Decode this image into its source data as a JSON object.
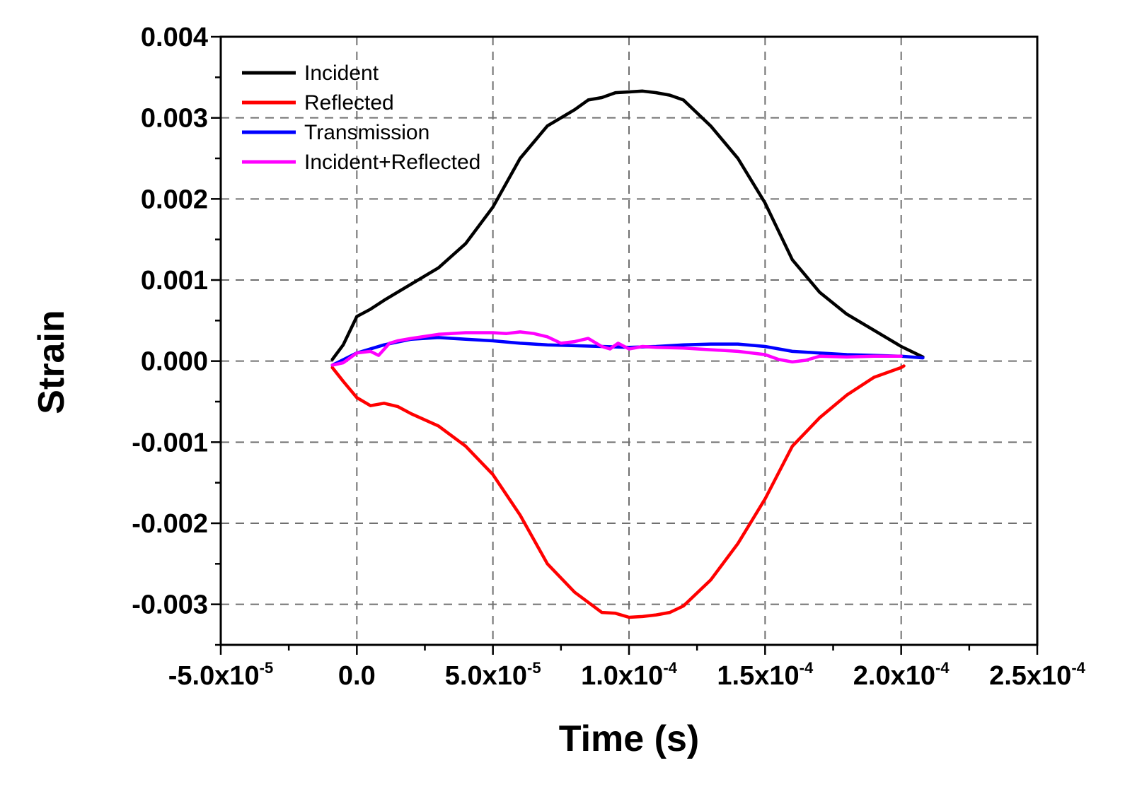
{
  "chart_data": {
    "type": "line",
    "title": "",
    "xlabel": "Time (s)",
    "ylabel": "Strain",
    "xlim": [
      -5e-05,
      0.00025
    ],
    "ylim": [
      -0.0035,
      0.004
    ],
    "grid": true,
    "legend_position": "top-left",
    "x_ticks": [
      {
        "value": -5e-05,
        "base": "-5.0x10",
        "exp": "-5"
      },
      {
        "value": 0.0,
        "base": "0.0",
        "exp": ""
      },
      {
        "value": 5e-05,
        "base": "5.0x10",
        "exp": "-5"
      },
      {
        "value": 0.0001,
        "base": "1.0x10",
        "exp": "-4"
      },
      {
        "value": 0.00015,
        "base": "1.5x10",
        "exp": "-4"
      },
      {
        "value": 0.0002,
        "base": "2.0x10",
        "exp": "-4"
      },
      {
        "value": 0.00025,
        "base": "2.5x10",
        "exp": "-4"
      }
    ],
    "y_ticks": [
      {
        "value": 0.004,
        "label": "0.004"
      },
      {
        "value": 0.003,
        "label": "0.003"
      },
      {
        "value": 0.002,
        "label": "0.002"
      },
      {
        "value": 0.001,
        "label": "0.001"
      },
      {
        "value": 0.0,
        "label": "0.000"
      },
      {
        "value": -0.001,
        "label": "-0.001"
      },
      {
        "value": -0.002,
        "label": "-0.002"
      },
      {
        "value": -0.003,
        "label": "-0.003"
      }
    ],
    "series": [
      {
        "name": "Incident",
        "color": "#000000",
        "x": [
          -9e-06,
          -5e-06,
          0.0,
          5e-06,
          1e-05,
          1.5e-05,
          2e-05,
          3e-05,
          4e-05,
          5e-05,
          6e-05,
          7e-05,
          8e-05,
          8.5e-05,
          9e-05,
          9.5e-05,
          0.0001,
          0.000105,
          0.00011,
          0.000115,
          0.00012,
          0.00013,
          0.00014,
          0.00015,
          0.00016,
          0.00017,
          0.00018,
          0.00019,
          0.0002,
          0.000208
        ],
        "values": [
          2e-05,
          0.0002,
          0.00055,
          0.00064,
          0.00075,
          0.00085,
          0.00095,
          0.00115,
          0.00145,
          0.0019,
          0.0025,
          0.0029,
          0.0031,
          0.00322,
          0.00325,
          0.00331,
          0.00332,
          0.00333,
          0.00331,
          0.00328,
          0.00322,
          0.0029,
          0.0025,
          0.00195,
          0.00125,
          0.00085,
          0.00058,
          0.00038,
          0.00018,
          5e-05
        ]
      },
      {
        "name": "Reflected",
        "color": "#ff0000",
        "x": [
          -9e-06,
          -5e-06,
          0.0,
          5e-06,
          1e-05,
          1.5e-05,
          2e-05,
          3e-05,
          4e-05,
          5e-05,
          6e-05,
          7e-05,
          8e-05,
          9e-05,
          9.5e-05,
          0.0001,
          0.000105,
          0.00011,
          0.000115,
          0.00012,
          0.00013,
          0.00014,
          0.00015,
          0.00016,
          0.00017,
          0.00018,
          0.00019,
          0.0002,
          0.000201
        ],
        "values": [
          -8e-05,
          -0.00025,
          -0.00045,
          -0.00055,
          -0.00052,
          -0.00056,
          -0.00065,
          -0.0008,
          -0.00105,
          -0.0014,
          -0.0019,
          -0.0025,
          -0.00285,
          -0.0031,
          -0.00311,
          -0.00316,
          -0.00315,
          -0.00313,
          -0.0031,
          -0.00302,
          -0.0027,
          -0.00225,
          -0.0017,
          -0.00105,
          -0.0007,
          -0.00042,
          -0.0002,
          -8e-05,
          -6e-05
        ]
      },
      {
        "name": "Transmission",
        "color": "#0000ff",
        "x": [
          -9e-06,
          0.0,
          1e-05,
          2e-05,
          3e-05,
          4e-05,
          5e-05,
          6e-05,
          7e-05,
          8e-05,
          9e-05,
          0.0001,
          0.00011,
          0.00012,
          0.00013,
          0.00014,
          0.00015,
          0.00016,
          0.00017,
          0.00018,
          0.00019,
          0.0002,
          0.000208
        ],
        "values": [
          -5e-05,
          0.0001,
          0.0002,
          0.00027,
          0.00029,
          0.00027,
          0.00025,
          0.00022,
          0.0002,
          0.00019,
          0.00018,
          0.00017,
          0.00018,
          0.0002,
          0.00021,
          0.00021,
          0.00018,
          0.00012,
          0.0001,
          8e-05,
          7e-05,
          6e-05,
          4e-05
        ]
      },
      {
        "name": "Incident+Reflected",
        "color": "#ff00ff",
        "x": [
          -9e-06,
          -5e-06,
          0.0,
          5e-06,
          8e-06,
          1.2e-05,
          1.5e-05,
          2e-05,
          3e-05,
          4e-05,
          5e-05,
          5.5e-05,
          6e-05,
          6.5e-05,
          7e-05,
          7.5e-05,
          8e-05,
          8.5e-05,
          9e-05,
          9.3e-05,
          9.6e-05,
          0.0001,
          0.000105,
          0.00011,
          0.00012,
          0.00013,
          0.00014,
          0.00015,
          0.000155,
          0.00016,
          0.000165,
          0.00017,
          0.00018,
          0.00019,
          0.0002
        ],
        "values": [
          -5e-05,
          -2e-05,
          0.0001,
          0.00012,
          7e-05,
          0.00022,
          0.00025,
          0.00028,
          0.00033,
          0.00035,
          0.00035,
          0.00034,
          0.00036,
          0.00034,
          0.0003,
          0.00022,
          0.00024,
          0.00028,
          0.00018,
          0.00015,
          0.00022,
          0.00015,
          0.00018,
          0.00017,
          0.00016,
          0.00014,
          0.00012,
          8e-05,
          2e-05,
          -1e-05,
          1e-05,
          6e-05,
          5e-05,
          6e-05,
          6e-05
        ]
      }
    ]
  }
}
